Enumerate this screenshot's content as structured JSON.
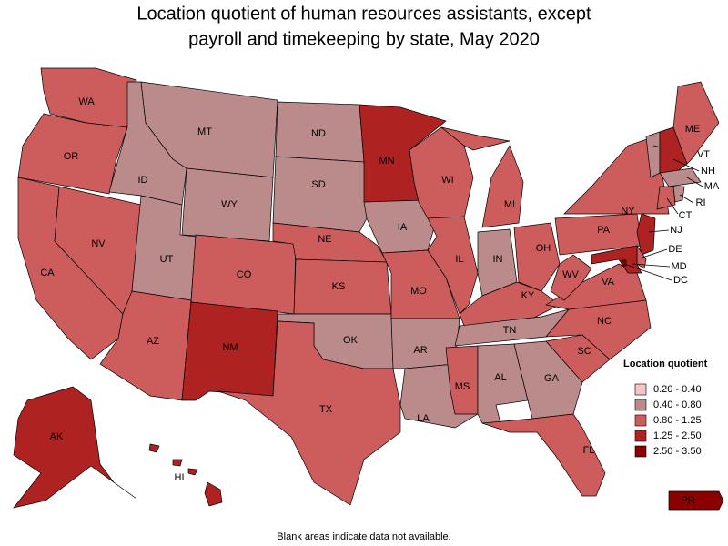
{
  "title": [
    "Location quotient of human resources assistants, except",
    "payroll and timekeeping by state, May 2020"
  ],
  "states": [
    {
      "label": "WA",
      "color": "#cd5c5c"
    },
    {
      "label": "OR",
      "color": "#cd5c5c"
    },
    {
      "label": "CA",
      "color": "#cd5c5c"
    },
    {
      "label": "NV",
      "color": "#cd5c5c"
    },
    {
      "label": "ID",
      "color": "#bb8a8a"
    },
    {
      "label": "MT",
      "color": "#bb8a8a"
    },
    {
      "label": "WY",
      "color": "#bb8a8a"
    },
    {
      "label": "UT",
      "color": "#bb8a8a"
    },
    {
      "label": "AZ",
      "color": "#cd5c5c"
    },
    {
      "label": "CO",
      "color": "#cd5c5c"
    },
    {
      "label": "NM",
      "color": "#ae2222"
    },
    {
      "label": "ND",
      "color": "#bb8a8a"
    },
    {
      "label": "SD",
      "color": "#bb8a8a"
    },
    {
      "label": "NE",
      "color": "#cd5c5c"
    },
    {
      "label": "KS",
      "color": "#cd5c5c"
    },
    {
      "label": "OK",
      "color": "#bb8a8a"
    },
    {
      "label": "TX",
      "color": "#cd5c5c"
    },
    {
      "label": "MN",
      "color": "#ae2222"
    },
    {
      "label": "IA",
      "color": "#bb8a8a"
    },
    {
      "label": "MO",
      "color": "#cd5c5c"
    },
    {
      "label": "AR",
      "color": "#bb8a8a"
    },
    {
      "label": "LA",
      "color": "#bb8a8a"
    },
    {
      "label": "WI",
      "color": "#cd5c5c"
    },
    {
      "label": "IL",
      "color": "#cd5c5c"
    },
    {
      "label": "MI",
      "color": "#cd5c5c"
    },
    {
      "label": "IN",
      "color": "#bb8a8a"
    },
    {
      "label": "OH",
      "color": "#cd5c5c"
    },
    {
      "label": "KY",
      "color": "#cd5c5c"
    },
    {
      "label": "TN",
      "color": "#bb8a8a"
    },
    {
      "label": "MS",
      "color": "#cd5c5c"
    },
    {
      "label": "AL",
      "color": "#bb8a8a"
    },
    {
      "label": "GA",
      "color": "#bb8a8a"
    },
    {
      "label": "FL",
      "color": "#cd5c5c"
    },
    {
      "label": "SC",
      "color": "#cd5c5c"
    },
    {
      "label": "NC",
      "color": "#cd5c5c"
    },
    {
      "label": "VA",
      "color": "#cd5c5c"
    },
    {
      "label": "WV",
      "color": "#cd5c5c"
    },
    {
      "label": "PA",
      "color": "#cd5c5c"
    },
    {
      "label": "NY",
      "color": "#cd5c5c"
    },
    {
      "label": "VT",
      "color": "#bb8a8a"
    },
    {
      "label": "NH",
      "color": "#ae2222"
    },
    {
      "label": "ME",
      "color": "#cd5c5c"
    },
    {
      "label": "MA",
      "color": "#bb8a8a"
    },
    {
      "label": "CT",
      "color": "#cd5c5c"
    },
    {
      "label": "RI",
      "color": "#bb8a8a"
    },
    {
      "label": "NJ",
      "color": "#ae2222"
    },
    {
      "label": "DE",
      "color": "#cd5c5c"
    },
    {
      "label": "MD",
      "color": "#ae2222"
    },
    {
      "label": "DC",
      "color": "#8b0000"
    },
    {
      "label": "AK",
      "color": "#ae2222"
    },
    {
      "label": "HI",
      "color": "#ae2222"
    },
    {
      "label": "PR",
      "color": "#8b0000"
    }
  ],
  "legend": {
    "title": "Location quotient",
    "items": [
      {
        "label": "0.20 - 0.40",
        "color": "#f5c4c4"
      },
      {
        "label": "0.40 - 0.80",
        "color": "#bb8a8a"
      },
      {
        "label": "0.80 - 1.25",
        "color": "#cd5c5c"
      },
      {
        "label": "1.25 - 2.50",
        "color": "#ae2222"
      },
      {
        "label": "2.50 - 3.50",
        "color": "#8b0000"
      }
    ]
  },
  "note": "Blank areas indicate data not available."
}
